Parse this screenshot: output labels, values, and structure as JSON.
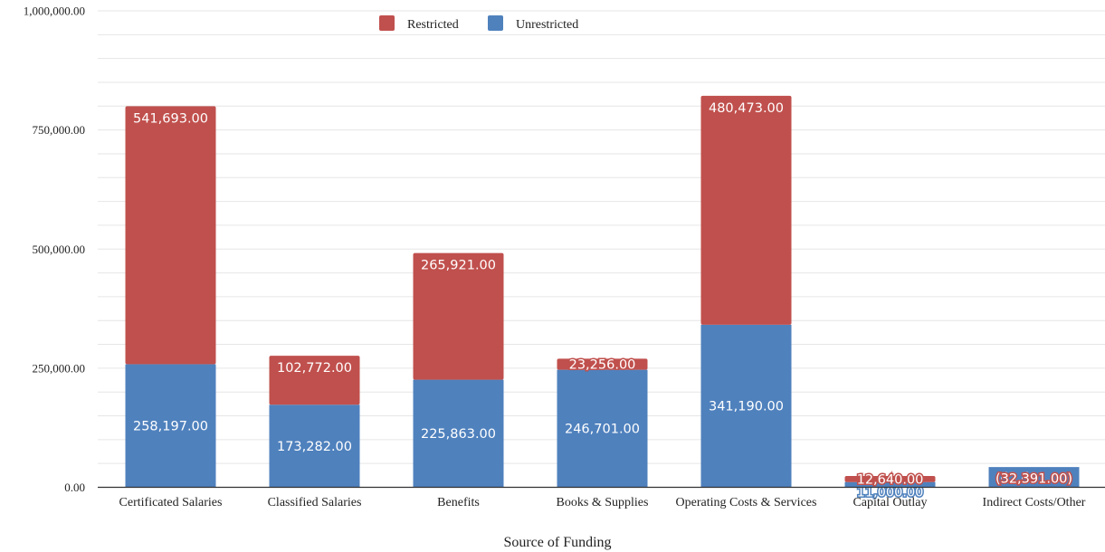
{
  "chart_data": {
    "type": "bar",
    "stacked": true,
    "title": "",
    "xlabel": "Source of Funding",
    "ylabel": "",
    "ylim": [
      0,
      1000000
    ],
    "yticks": [
      0,
      250000,
      500000,
      750000,
      1000000
    ],
    "ytick_labels": [
      "0.00",
      "250,000.00",
      "500,000.00",
      "750,000.00",
      "1,000,000.00"
    ],
    "grid": true,
    "legend_position": "top-center",
    "categories": [
      "Certificated Salaries",
      "Classified Salaries",
      "Benefits",
      "Books & Supplies",
      "Operating Costs & Services",
      "Capital Outlay",
      "Indirect Costs/Other"
    ],
    "series": [
      {
        "name": "Unrestricted",
        "color": "#4f81bd",
        "values": [
          258197,
          173282,
          225863,
          246701,
          341190,
          11000,
          42491
        ],
        "labels": [
          "258,197.00",
          "173,282.00",
          "225,863.00",
          "246,701.00",
          "341,190.00",
          "11,000.00",
          "42,491.00"
        ]
      },
      {
        "name": "Restricted",
        "color": "#c0504d",
        "values": [
          541693,
          102772,
          265921,
          23256,
          480473,
          12640,
          -32391
        ],
        "labels": [
          "541,693.00",
          "102,772.00",
          "265,921.00",
          "23,256.00",
          "480,473.00",
          "12,640.00",
          "(32,391.00)"
        ]
      }
    ]
  }
}
